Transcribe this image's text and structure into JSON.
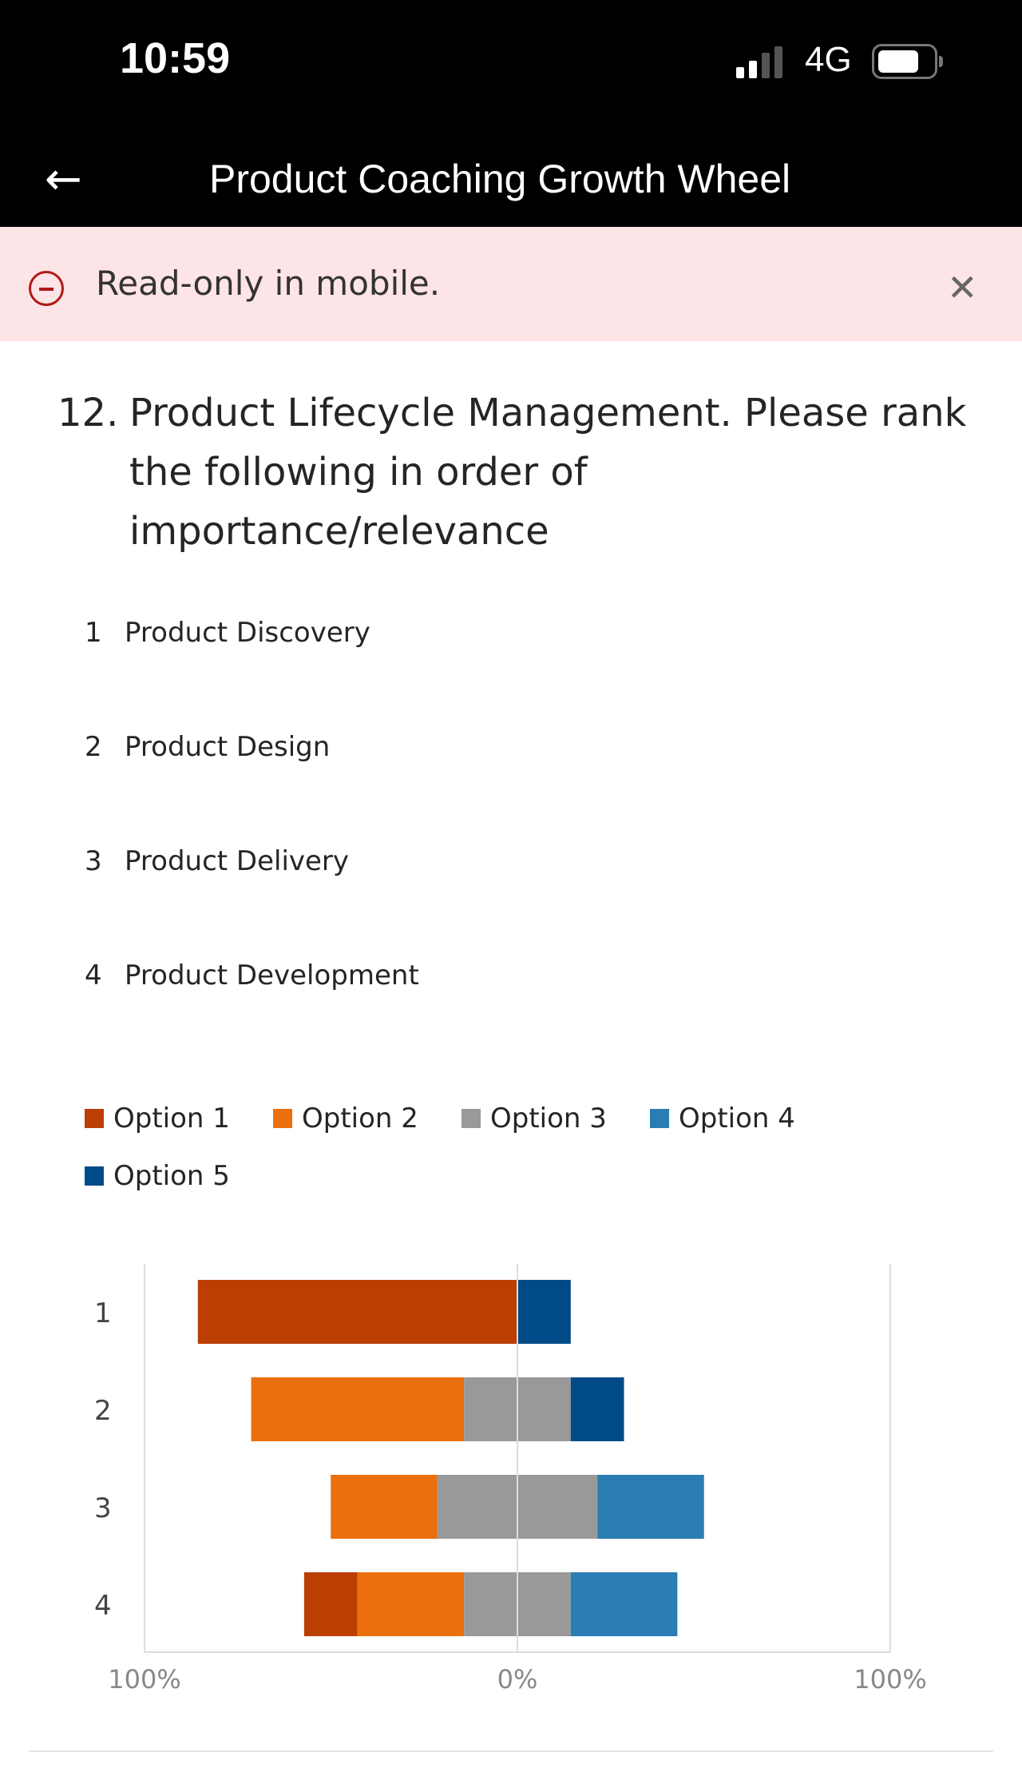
{
  "status_bar": {
    "time": "10:59",
    "network": "4G"
  },
  "header": {
    "title": "Product Coaching Growth Wheel",
    "back_icon": "arrow-left-icon"
  },
  "banner": {
    "text": "Read-only in mobile.",
    "icon": "minus-circle-icon",
    "close_icon": "close-icon"
  },
  "question": {
    "number": "12.",
    "text": "Product Lifecycle Management. Please rank the following in order of importance/relevance"
  },
  "items": [
    {
      "n": "1",
      "label": "Product Discovery"
    },
    {
      "n": "2",
      "label": "Product Design"
    },
    {
      "n": "3",
      "label": "Product Delivery"
    },
    {
      "n": "4",
      "label": "Product Development"
    }
  ],
  "chart_data": {
    "type": "bar",
    "subtype": "diverging-stacked-horizontal",
    "categories": [
      "1",
      "2",
      "3",
      "4"
    ],
    "series": [
      {
        "name": "Option 1",
        "color": "#bb3e03",
        "values": [
          85.7,
          0,
          0,
          14.3
        ]
      },
      {
        "name": "Option 2",
        "color": "#eb6f0c",
        "values": [
          0,
          57.1,
          28.6,
          28.6
        ]
      },
      {
        "name": "Option 3",
        "color": "#999999",
        "values": [
          0,
          28.6,
          42.9,
          28.6
        ]
      },
      {
        "name": "Option 4",
        "color": "#2a7cb3",
        "values": [
          0,
          0,
          28.6,
          28.6
        ]
      },
      {
        "name": "Option 5",
        "color": "#004b87",
        "values": [
          14.3,
          14.3,
          0,
          0
        ]
      }
    ],
    "xticks": [
      "100%",
      "0%",
      "100%"
    ],
    "xlim": [
      -100,
      100
    ],
    "legend": "top-left"
  }
}
